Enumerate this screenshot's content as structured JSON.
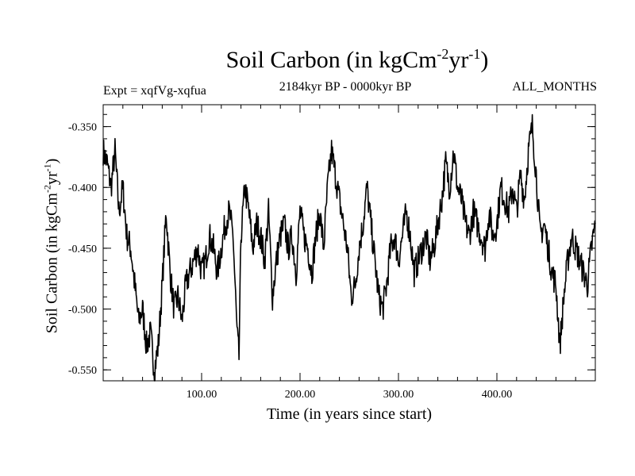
{
  "title": {
    "text": "Soil Carbon (in kgCm",
    "exp1": "-2",
    "mid": "yr",
    "exp2": "-1",
    "end": ")"
  },
  "subtitle": "2184kyr BP - 0000kyr BP",
  "expt_label": "Expt = xqfVg-xqfua",
  "months_label": "ALL_MONTHS",
  "chart_data": {
    "type": "line",
    "title": "Soil Carbon (in kgCm-2yr-1)",
    "xlabel": "Time (in years since start)",
    "ylabel": "Soil Carbon (in kgCm-2yr-1)",
    "xlim": [
      0,
      500
    ],
    "ylim": [
      -0.559,
      -0.332
    ],
    "xticks": [
      100,
      200,
      300,
      400
    ],
    "xtick_labels": [
      "100.00",
      "200.00",
      "300.00",
      "400.00"
    ],
    "yticks": [
      -0.35,
      -0.4,
      -0.45,
      -0.5,
      -0.55
    ],
    "ytick_labels": [
      "-0.350",
      "-0.400",
      "-0.450",
      "-0.500",
      "-0.550"
    ],
    "series": [
      {
        "name": "Soil Carbon",
        "x": [
          0,
          4,
          8,
          12,
          16,
          20,
          24,
          28,
          32,
          36,
          40,
          44,
          48,
          52,
          56,
          60,
          64,
          68,
          72,
          76,
          80,
          84,
          88,
          92,
          96,
          100,
          104,
          108,
          112,
          116,
          120,
          124,
          128,
          132,
          136,
          138,
          140,
          144,
          148,
          152,
          156,
          160,
          164,
          168,
          172,
          176,
          180,
          184,
          188,
          192,
          196,
          200,
          204,
          208,
          212,
          216,
          220,
          224,
          228,
          232,
          236,
          240,
          244,
          248,
          252,
          256,
          260,
          264,
          268,
          272,
          276,
          280,
          284,
          288,
          292,
          296,
          300,
          304,
          308,
          312,
          316,
          320,
          324,
          328,
          332,
          336,
          340,
          344,
          348,
          352,
          356,
          360,
          364,
          368,
          372,
          376,
          380,
          384,
          388,
          392,
          396,
          400,
          404,
          408,
          412,
          416,
          420,
          424,
          428,
          432,
          436,
          440,
          444,
          448,
          452,
          456,
          460,
          464,
          468,
          472,
          476,
          480,
          484,
          488,
          492,
          496,
          500
        ],
        "y": [
          -0.37,
          -0.38,
          -0.4,
          -0.37,
          -0.42,
          -0.4,
          -0.44,
          -0.45,
          -0.48,
          -0.51,
          -0.5,
          -0.53,
          -0.52,
          -0.55,
          -0.53,
          -0.48,
          -0.42,
          -0.47,
          -0.5,
          -0.49,
          -0.51,
          -0.48,
          -0.47,
          -0.46,
          -0.45,
          -0.47,
          -0.46,
          -0.44,
          -0.45,
          -0.47,
          -0.45,
          -0.43,
          -0.42,
          -0.44,
          -0.52,
          -0.54,
          -0.44,
          -0.4,
          -0.42,
          -0.45,
          -0.43,
          -0.44,
          -0.46,
          -0.42,
          -0.49,
          -0.46,
          -0.44,
          -0.43,
          -0.45,
          -0.44,
          -0.47,
          -0.42,
          -0.44,
          -0.45,
          -0.47,
          -0.44,
          -0.42,
          -0.45,
          -0.4,
          -0.37,
          -0.39,
          -0.41,
          -0.43,
          -0.45,
          -0.49,
          -0.48,
          -0.45,
          -0.43,
          -0.4,
          -0.43,
          -0.46,
          -0.49,
          -0.5,
          -0.48,
          -0.45,
          -0.44,
          -0.46,
          -0.44,
          -0.42,
          -0.44,
          -0.47,
          -0.46,
          -0.45,
          -0.44,
          -0.46,
          -0.45,
          -0.43,
          -0.41,
          -0.38,
          -0.4,
          -0.37,
          -0.4,
          -0.41,
          -0.43,
          -0.44,
          -0.42,
          -0.43,
          -0.44,
          -0.45,
          -0.42,
          -0.44,
          -0.43,
          -0.4,
          -0.41,
          -0.42,
          -0.4,
          -0.42,
          -0.39,
          -0.41,
          -0.37,
          -0.35,
          -0.39,
          -0.44,
          -0.43,
          -0.45,
          -0.47,
          -0.48,
          -0.53,
          -0.49,
          -0.46,
          -0.44,
          -0.45,
          -0.46,
          -0.47,
          -0.48,
          -0.45,
          -0.43
        ]
      }
    ]
  }
}
